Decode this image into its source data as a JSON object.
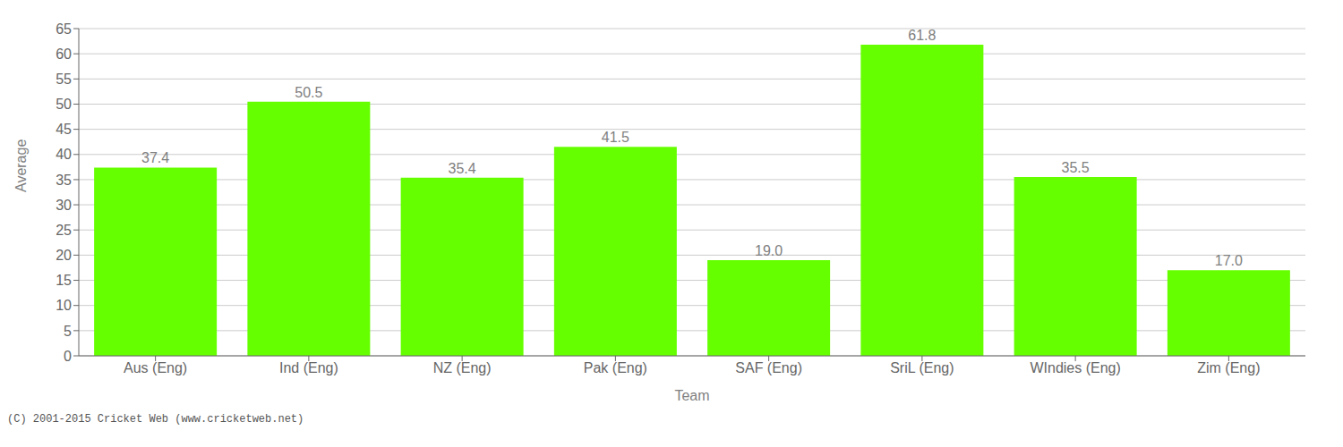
{
  "chart_data": {
    "type": "bar",
    "categories": [
      "Aus (Eng)",
      "Ind (Eng)",
      "NZ (Eng)",
      "Pak (Eng)",
      "SAF (Eng)",
      "SriL (Eng)",
      "WIndies (Eng)",
      "Zim (Eng)"
    ],
    "values": [
      37.4,
      50.5,
      35.4,
      41.5,
      19.0,
      61.8,
      35.5,
      17.0
    ],
    "value_labels": [
      "37.4",
      "50.5",
      "35.4",
      "41.5",
      "19.0",
      "61.8",
      "35.5",
      "17.0"
    ],
    "data_labels": true,
    "color": "#66ff00",
    "xlabel": "Team",
    "ylabel": "Average",
    "ylim": [
      0,
      65
    ],
    "yticks": [
      0,
      5,
      10,
      15,
      20,
      25,
      30,
      35,
      40,
      45,
      50,
      55,
      60,
      65
    ],
    "grid": true,
    "annotations": [
      {
        "text": "(C) 2001-2015 Cricket Web (www.cricketweb.net)"
      }
    ]
  }
}
